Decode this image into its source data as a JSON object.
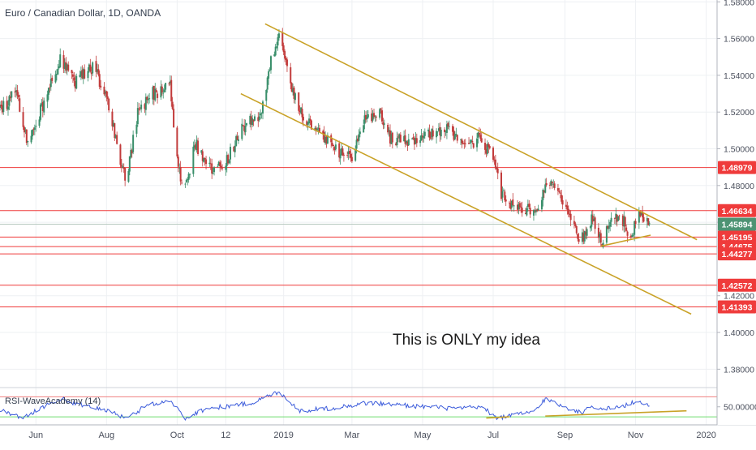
{
  "header": {
    "symbol_title": "Euro / Canadian Dollar, 1D, OANDA"
  },
  "annotation": {
    "text": "This is ONLY my idea"
  },
  "colors": {
    "up_candle": "#3a8f6b",
    "down_candle": "#c23b3b",
    "level_line": "#ef3b3b",
    "trend_line": "#c9a227",
    "grid": "#eef0f3",
    "axis_text": "#4a4f5c",
    "rsi_line": "#3b5bdb",
    "rsi_upper": "#f08080",
    "rsi_lower": "#6fdc6f",
    "last_price_badge": "#4d9373"
  },
  "chart_data": {
    "type": "candlestick",
    "price_axis": {
      "ylim": [
        1.37,
        1.581
      ],
      "tick_labels": [
        "1.58000",
        "1.56000",
        "1.54000",
        "1.52000",
        "1.50000",
        "1.48000",
        "1.46000",
        "1.42000",
        "1.40000",
        "1.38000"
      ],
      "tick_values": [
        1.58,
        1.56,
        1.54,
        1.52,
        1.5,
        1.48,
        1.46,
        1.42,
        1.4,
        1.38
      ]
    },
    "time_axis": {
      "labels": [
        "Jun",
        "Aug",
        "Oct",
        "12",
        "2019",
        "Mar",
        "May",
        "Jul",
        "Sep",
        "Nov",
        "2020"
      ],
      "dates": [
        "2018-06-01",
        "2018-08-01",
        "2018-10-01",
        "2018-11-12",
        "2019-01-01",
        "2019-03-01",
        "2019-05-01",
        "2019-07-01",
        "2019-09-01",
        "2019-11-01",
        "2020-01-01"
      ],
      "range": [
        "2018-05-01",
        "2020-02-13"
      ]
    },
    "last_price": {
      "label": "1.45894",
      "value": 1.45894
    },
    "levels": [
      {
        "label": "1.48979",
        "value": 1.48979
      },
      {
        "label": "1.46634",
        "value": 1.46634
      },
      {
        "label": "1.45195",
        "value": 1.45195
      },
      {
        "label": "1.44675",
        "value": 1.44675
      },
      {
        "label": "1.44277",
        "value": 1.44277
      },
      {
        "label": "1.42572",
        "value": 1.42572
      },
      {
        "label": "1.41393",
        "value": 1.41393
      }
    ],
    "trendlines": [
      {
        "from": [
          "2018-12-16",
          1.568
        ],
        "to": [
          "2019-12-24",
          1.4505
        ]
      },
      {
        "from": [
          "2018-11-25",
          1.53
        ],
        "to": [
          "2019-12-19",
          1.41
        ]
      },
      {
        "from": [
          "2019-10-02",
          1.447
        ],
        "to": [
          "2019-11-14",
          1.453
        ]
      }
    ],
    "anchors": [
      [
        "2018-05-01",
        1.522
      ],
      [
        "2018-05-15",
        1.53
      ],
      [
        "2018-05-25",
        1.504
      ],
      [
        "2018-06-10",
        1.528
      ],
      [
        "2018-06-22",
        1.55
      ],
      [
        "2018-07-04",
        1.536
      ],
      [
        "2018-07-20",
        1.544
      ],
      [
        "2018-07-31",
        1.532
      ],
      [
        "2018-08-09",
        1.505
      ],
      [
        "2018-08-18",
        1.482
      ],
      [
        "2018-08-28",
        1.52
      ],
      [
        "2018-09-10",
        1.53
      ],
      [
        "2018-09-25",
        1.533
      ],
      [
        "2018-10-02",
        1.489
      ],
      [
        "2018-10-08",
        1.479
      ],
      [
        "2018-10-17",
        1.503
      ],
      [
        "2018-10-31",
        1.488
      ],
      [
        "2018-11-12",
        1.493
      ],
      [
        "2018-11-22",
        1.506
      ],
      [
        "2018-12-02",
        1.518
      ],
      [
        "2018-12-10",
        1.512
      ],
      [
        "2018-12-20",
        1.545
      ],
      [
        "2018-12-28",
        1.564
      ],
      [
        "2019-01-03",
        1.545
      ],
      [
        "2019-01-15",
        1.52
      ],
      [
        "2019-01-31",
        1.51
      ],
      [
        "2019-02-14",
        1.5
      ],
      [
        "2019-02-28",
        1.494
      ],
      [
        "2019-03-11",
        1.515
      ],
      [
        "2019-03-25",
        1.52
      ],
      [
        "2019-04-03",
        1.506
      ],
      [
        "2019-04-17",
        1.504
      ],
      [
        "2019-05-01",
        1.506
      ],
      [
        "2019-05-21",
        1.512
      ],
      [
        "2019-06-05",
        1.5
      ],
      [
        "2019-06-20",
        1.506
      ],
      [
        "2019-07-01",
        1.494
      ],
      [
        "2019-07-08",
        1.476
      ],
      [
        "2019-07-16",
        1.468
      ],
      [
        "2019-07-30",
        1.468
      ],
      [
        "2019-08-09",
        1.468
      ],
      [
        "2019-08-16",
        1.482
      ],
      [
        "2019-08-26",
        1.476
      ],
      [
        "2019-09-05",
        1.464
      ],
      [
        "2019-09-15",
        1.45
      ],
      [
        "2019-09-25",
        1.464
      ],
      [
        "2019-10-02",
        1.448
      ],
      [
        "2019-10-10",
        1.46
      ],
      [
        "2019-10-20",
        1.462
      ],
      [
        "2019-10-28",
        1.452
      ],
      [
        "2019-11-04",
        1.465
      ],
      [
        "2019-11-13",
        1.4589
      ]
    ],
    "rsi": {
      "label": "RSI-WaveAcademy (14)",
      "tick_labels": [
        "50.00000"
      ],
      "tick_values": [
        50
      ],
      "range": [
        5,
        98
      ],
      "upper_level": 75,
      "lower_level": 25,
      "trendlines": [
        {
          "from": [
            "2019-06-25",
            22
          ],
          "to": [
            "2019-07-15",
            25
          ]
        },
        {
          "from": [
            "2019-08-15",
            27
          ],
          "to": [
            "2019-12-15",
            40
          ]
        }
      ],
      "anchors": [
        [
          "2018-05-01",
          42
        ],
        [
          "2018-05-20",
          22
        ],
        [
          "2018-06-10",
          55
        ],
        [
          "2018-06-25",
          68
        ],
        [
          "2018-07-15",
          50
        ],
        [
          "2018-08-05",
          40
        ],
        [
          "2018-08-18",
          18
        ],
        [
          "2018-09-05",
          55
        ],
        [
          "2018-09-25",
          65
        ],
        [
          "2018-10-08",
          22
        ],
        [
          "2018-10-25",
          45
        ],
        [
          "2018-11-15",
          52
        ],
        [
          "2018-12-05",
          60
        ],
        [
          "2018-12-28",
          88
        ],
        [
          "2019-01-15",
          40
        ],
        [
          "2019-02-15",
          48
        ],
        [
          "2019-03-15",
          60
        ],
        [
          "2019-04-10",
          55
        ],
        [
          "2019-05-05",
          50
        ],
        [
          "2019-06-01",
          45
        ],
        [
          "2019-06-20",
          50
        ],
        [
          "2019-07-05",
          22
        ],
        [
          "2019-07-20",
          30
        ],
        [
          "2019-08-05",
          38
        ],
        [
          "2019-08-15",
          70
        ],
        [
          "2019-08-30",
          52
        ],
        [
          "2019-09-15",
          35
        ],
        [
          "2019-09-25",
          52
        ],
        [
          "2019-10-05",
          45
        ],
        [
          "2019-10-20",
          50
        ],
        [
          "2019-11-04",
          65
        ],
        [
          "2019-11-13",
          52
        ]
      ]
    }
  }
}
